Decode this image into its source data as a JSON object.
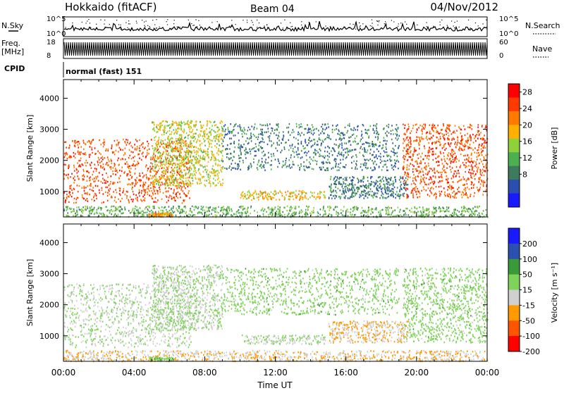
{
  "header": {
    "station": "Hokkaido (fitACF)",
    "beam": "Beam 04",
    "date": "04/Nov/2012"
  },
  "strips": {
    "nsky_label": "N.Sky",
    "nsky_ticks": [
      "10^5",
      "10^0"
    ],
    "nsearch_label": "N.Search",
    "freq_label_top": "Freq.",
    "freq_label_unit": "[MHz]",
    "freq_ticks": [
      "18",
      "8"
    ],
    "nave_ticks": [
      "60",
      "0"
    ],
    "nave_label": "Nave",
    "cpid_label": "CPID",
    "cpid_text": "normal (fast) 151"
  },
  "chart_data": [
    {
      "type": "heatmap",
      "title": "",
      "parameter": "Power",
      "xlabel": "Time UT",
      "ylabel": "Slant Range [km]",
      "x_ticks": [
        "00:00",
        "04:00",
        "08:00",
        "12:00",
        "16:00",
        "20:00",
        "00:00"
      ],
      "xlim_hours": [
        0,
        24
      ],
      "y_ticks": [
        "1000",
        "2000",
        "3000",
        "4000"
      ],
      "ylim": [
        180,
        4600
      ],
      "colorbar": {
        "label": "Power [dB]",
        "ticks": [
          "8",
          "12",
          "16",
          "20",
          "24",
          "28"
        ],
        "range": [
          0,
          30
        ],
        "colors": [
          "#1a1aff",
          "#2a4fb0",
          "#3d7a5e",
          "#4caf50",
          "#8fd13a",
          "#ffb000",
          "#ff7a00",
          "#ff3a00",
          "#ff0000"
        ]
      },
      "regions": [
        {
          "t0": 0.0,
          "t1": 7.2,
          "r0": 650,
          "r1": 2700,
          "value": 24
        },
        {
          "t0": 5.0,
          "t1": 9.0,
          "r0": 1200,
          "r1": 3300,
          "value": 16
        },
        {
          "t0": 10.0,
          "t1": 14.8,
          "r0": 750,
          "r1": 1050,
          "value": 18
        },
        {
          "t0": 15.0,
          "t1": 19.5,
          "r0": 800,
          "r1": 1500,
          "value": 8
        },
        {
          "t0": 9.0,
          "t1": 19.0,
          "r0": 1700,
          "r1": 3200,
          "value": 8
        },
        {
          "t0": 19.2,
          "t1": 24.0,
          "r0": 800,
          "r1": 3200,
          "value": 24
        },
        {
          "t0": 0.0,
          "t1": 24.0,
          "r0": 200,
          "r1": 550,
          "value": 12
        },
        {
          "t0": 4.8,
          "t1": 6.2,
          "r0": 230,
          "r1": 330,
          "value": 20
        }
      ]
    },
    {
      "type": "heatmap",
      "title": "",
      "parameter": "Velocity",
      "xlabel": "Time UT",
      "ylabel": "Slant Range [km]",
      "x_ticks": [
        "00:00",
        "04:00",
        "08:00",
        "12:00",
        "16:00",
        "20:00",
        "00:00"
      ],
      "xlim_hours": [
        0,
        24
      ],
      "y_ticks": [
        "1000",
        "2000",
        "3000",
        "4000"
      ],
      "ylim": [
        180,
        4600
      ],
      "colorbar": {
        "label": "Velocity [m s⁻¹]",
        "ticks": [
          "200",
          "100",
          "50",
          "15",
          "-15",
          "-50",
          "-100",
          "-200"
        ],
        "range": [
          -250,
          250
        ],
        "colors": [
          "#ff0000",
          "#ff5500",
          "#ff9a00",
          "#d0d0d0",
          "#7fd35a",
          "#3a9a3a",
          "#2a50b0",
          "#1a1aff"
        ]
      },
      "regions": [
        {
          "t0": 0.0,
          "t1": 7.2,
          "r0": 650,
          "r1": 2700,
          "value": 0
        },
        {
          "t0": 5.0,
          "t1": 9.0,
          "r0": 1200,
          "r1": 3300,
          "value": 0
        },
        {
          "t0": 10.0,
          "t1": 14.8,
          "r0": 750,
          "r1": 1050,
          "value": 0
        },
        {
          "t0": 15.0,
          "t1": 19.5,
          "r0": 800,
          "r1": 1500,
          "value": -60
        },
        {
          "t0": 9.0,
          "t1": 19.0,
          "r0": 1700,
          "r1": 3200,
          "value": 30
        },
        {
          "t0": 19.2,
          "t1": 24.0,
          "r0": 800,
          "r1": 3200,
          "value": 30
        },
        {
          "t0": 0.0,
          "t1": 24.0,
          "r0": 200,
          "r1": 550,
          "value": -60
        },
        {
          "t0": 4.8,
          "t1": 6.2,
          "r0": 230,
          "r1": 330,
          "value": 40
        }
      ]
    }
  ]
}
